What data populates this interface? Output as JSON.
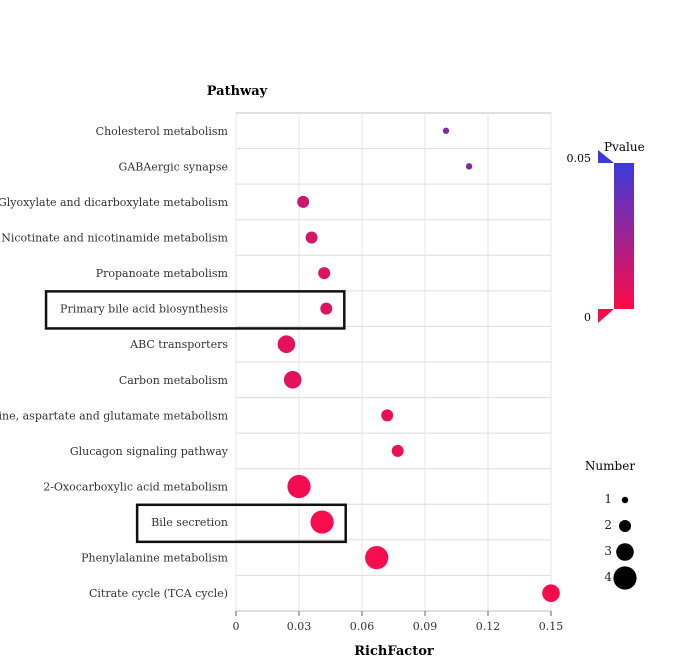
{
  "chart_data": {
    "type": "scatter",
    "title": "",
    "ylabel": "Pathway",
    "xlabel": "RichFactor",
    "xlim": [
      0,
      0.15
    ],
    "xticks": [
      "0",
      "0.03",
      "0.06",
      "0.09",
      "0.12",
      "0.15"
    ],
    "xtick_values": [
      0,
      0.03,
      0.06,
      0.09,
      0.12,
      0.15
    ],
    "categories": [
      "Cholesterol metabolism",
      "GABAergic synapse",
      "Glyoxylate and dicarboxylate metabolism",
      "Nicotinate and nicotinamide metabolism",
      "Propanoate metabolism",
      "Primary bile acid biosynthesis",
      "ABC transporters",
      "Carbon metabolism",
      "Alanine, aspartate and glutamate metabolism",
      "Glucagon signaling pathway",
      "2-Oxocarboxylic acid metabolism",
      "Bile secretion",
      "Phenylalanine metabolism",
      "Citrate cycle (TCA cycle)"
    ],
    "points": [
      {
        "pathway": "Cholesterol metabolism",
        "richfactor": 0.1,
        "number": 1,
        "pvalue": 0.033
      },
      {
        "pathway": "GABAergic synapse",
        "richfactor": 0.111,
        "number": 1,
        "pvalue": 0.03
      },
      {
        "pathway": "Glyoxylate and dicarboxylate metabolism",
        "richfactor": 0.032,
        "number": 2,
        "pvalue": 0.013
      },
      {
        "pathway": "Nicotinate and nicotinamide metabolism",
        "richfactor": 0.036,
        "number": 2,
        "pvalue": 0.011
      },
      {
        "pathway": "Propanoate metabolism",
        "richfactor": 0.042,
        "number": 2,
        "pvalue": 0.009
      },
      {
        "pathway": "Primary bile acid biosynthesis",
        "richfactor": 0.043,
        "number": 2,
        "pvalue": 0.009
      },
      {
        "pathway": "ABC transporters",
        "richfactor": 0.024,
        "number": 3,
        "pvalue": 0.007
      },
      {
        "pathway": "Carbon metabolism",
        "richfactor": 0.027,
        "number": 3,
        "pvalue": 0.007
      },
      {
        "pathway": "Alanine, aspartate and glutamate metabolism",
        "richfactor": 0.072,
        "number": 2,
        "pvalue": 0.005
      },
      {
        "pathway": "Glucagon signaling pathway",
        "richfactor": 0.077,
        "number": 2,
        "pvalue": 0.005
      },
      {
        "pathway": "2-Oxocarboxylic acid metabolism",
        "richfactor": 0.03,
        "number": 4,
        "pvalue": 0.003
      },
      {
        "pathway": "Bile secretion",
        "richfactor": 0.041,
        "number": 4,
        "pvalue": 0.002
      },
      {
        "pathway": "Phenylalanine metabolism",
        "richfactor": 0.067,
        "number": 4,
        "pvalue": 0.002
      },
      {
        "pathway": "Citrate cycle (TCA cycle)",
        "richfactor": 0.15,
        "number": 3,
        "pvalue": 0.002
      }
    ],
    "highlighted": [
      "Primary bile acid biosynthesis",
      "Bile secretion"
    ],
    "color_legend": {
      "title": "Pvalue",
      "max_label": "0.05",
      "min_label": "0",
      "max_value": 0.05,
      "min_value": 0,
      "color_high": "#3b3bdc",
      "color_low": "#ff0a47"
    },
    "size_legend": {
      "title": "Number",
      "entries": [
        {
          "label": "1",
          "value": 1
        },
        {
          "label": "2",
          "value": 2
        },
        {
          "label": "3",
          "value": 3
        },
        {
          "label": "4",
          "value": 4
        }
      ]
    }
  }
}
